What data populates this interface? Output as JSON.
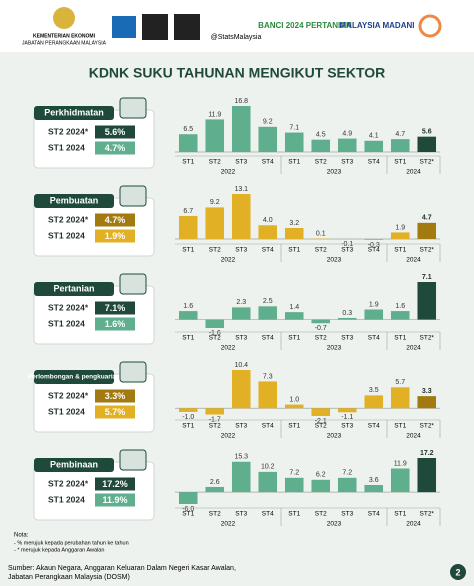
{
  "header": {
    "ministry": "KEMENTERIAN EKONOMI",
    "department": "JABATAN PERANGKAAN MALAYSIA",
    "handle": "@StatsMalaysia",
    "census": "BANCI 2024 PERTANIAN",
    "madani": "MALAYSIA MADANI",
    "title": "KDNK SUKU TAHUNAN MENGIKUT SEKTOR"
  },
  "chart_data": [
    {
      "type": "bar",
      "sector": "Perkhidmatan",
      "summary": [
        {
          "label": "ST2 2024*",
          "value": "5.6%"
        },
        {
          "label": "ST1 2024",
          "value": "4.7%"
        }
      ],
      "categories": [
        "ST1",
        "ST2",
        "ST3",
        "ST4",
        "ST1",
        "ST2",
        "ST3",
        "ST4",
        "ST1",
        "ST2*"
      ],
      "years": [
        "2022",
        "2023",
        "2024"
      ],
      "values": [
        6.5,
        11.9,
        16.8,
        9.2,
        7.1,
        4.5,
        4.9,
        4.1,
        4.7,
        5.6
      ],
      "value_labels": [
        "6.5",
        "11.9",
        "16.8",
        "9.2",
        "7.1",
        "4.5",
        "4.9",
        "4.1",
        "4.7",
        "5.6"
      ],
      "color": "#5fae8d",
      "highlight_color": "#1f4a3b"
    },
    {
      "type": "bar",
      "sector": "Pembuatan",
      "summary": [
        {
          "label": "ST2 2024*",
          "value": "4.7%"
        },
        {
          "label": "ST1 2024",
          "value": "1.9%"
        }
      ],
      "categories": [
        "ST1",
        "ST2",
        "ST3",
        "ST4",
        "ST1",
        "ST2",
        "ST3",
        "ST4",
        "ST1",
        "ST2*"
      ],
      "years": [
        "2022",
        "2023",
        "2024"
      ],
      "values": [
        6.7,
        9.2,
        13.1,
        4.0,
        3.2,
        0.1,
        -0.1,
        -0.3,
        1.9,
        4.7
      ],
      "value_labels": [
        "6.7",
        "9.2",
        "13.1",
        "4.0",
        "3.2",
        "0.1",
        "-0.1",
        "-0.3",
        "1.9",
        "4.7"
      ],
      "color": "#e2b024",
      "highlight_color": "#a27a10"
    },
    {
      "type": "bar",
      "sector": "Pertanian",
      "summary": [
        {
          "label": "ST2 2024*",
          "value": "7.1%"
        },
        {
          "label": "ST1 2024",
          "value": "1.6%"
        }
      ],
      "categories": [
        "ST1",
        "ST2",
        "ST3",
        "ST4",
        "ST1",
        "ST2",
        "ST3",
        "ST4",
        "ST1",
        "ST2*"
      ],
      "years": [
        "2022",
        "2023",
        "2024"
      ],
      "values": [
        1.6,
        -1.6,
        2.3,
        2.5,
        1.4,
        -0.7,
        0.3,
        1.9,
        1.6,
        7.1
      ],
      "value_labels": [
        "1.6",
        "-1.6",
        "2.3",
        "2.5",
        "1.4",
        "-0.7",
        "0.3",
        "1.9",
        "1.6",
        "7.1"
      ],
      "color": "#5fae8d",
      "highlight_color": "#1f4a3b"
    },
    {
      "type": "bar",
      "sector": "Perlombongan & pengkuarian",
      "summary": [
        {
          "label": "ST2 2024*",
          "value": "3.3%"
        },
        {
          "label": "ST1 2024",
          "value": "5.7%"
        }
      ],
      "categories": [
        "ST1",
        "ST2",
        "ST3",
        "ST4",
        "ST1",
        "ST2",
        "ST3",
        "ST4",
        "ST1",
        "ST2*"
      ],
      "years": [
        "2022",
        "2023",
        "2024"
      ],
      "values": [
        -1.0,
        -1.7,
        10.4,
        7.3,
        1.0,
        -2.1,
        -1.1,
        3.5,
        5.7,
        3.3
      ],
      "value_labels": [
        "-1.0",
        "-1.7",
        "10.4",
        "7.3",
        "1.0",
        "-2.1",
        "-1.1",
        "3.5",
        "5.7",
        "3.3"
      ],
      "color": "#e2b024",
      "highlight_color": "#a27a10"
    },
    {
      "type": "bar",
      "sector": "Pembinaan",
      "summary": [
        {
          "label": "ST2 2024*",
          "value": "17.2%"
        },
        {
          "label": "ST1 2024",
          "value": "11.9%"
        }
      ],
      "categories": [
        "ST1",
        "ST2",
        "ST3",
        "ST4",
        "ST1",
        "ST2",
        "ST3",
        "ST4",
        "ST1",
        "ST2*"
      ],
      "years": [
        "2022",
        "2023",
        "2024"
      ],
      "values": [
        -6.0,
        2.6,
        15.3,
        10.2,
        7.2,
        6.2,
        7.2,
        3.6,
        11.9,
        17.2
      ],
      "value_labels": [
        "-6.0",
        "2.6",
        "15.3",
        "10.2",
        "7.2",
        "6.2",
        "7.2",
        "3.6",
        "11.9",
        "17.2"
      ],
      "color": "#5fae8d",
      "highlight_color": "#1f4a3b"
    }
  ],
  "notes": {
    "heading": "Nota:",
    "lines": [
      "- % merujuk kepada perubahan tahun ke tahun",
      "- * merujuk kepada Anggaran Awalan"
    ]
  },
  "footer": {
    "source": "Sumber: Akaun Negara, Anggaran Keluaran Dalam Negeri Kasar Awalan,",
    "source2": "Jabatan Perangkaan Malaysia (DOSM)",
    "page": "2"
  }
}
